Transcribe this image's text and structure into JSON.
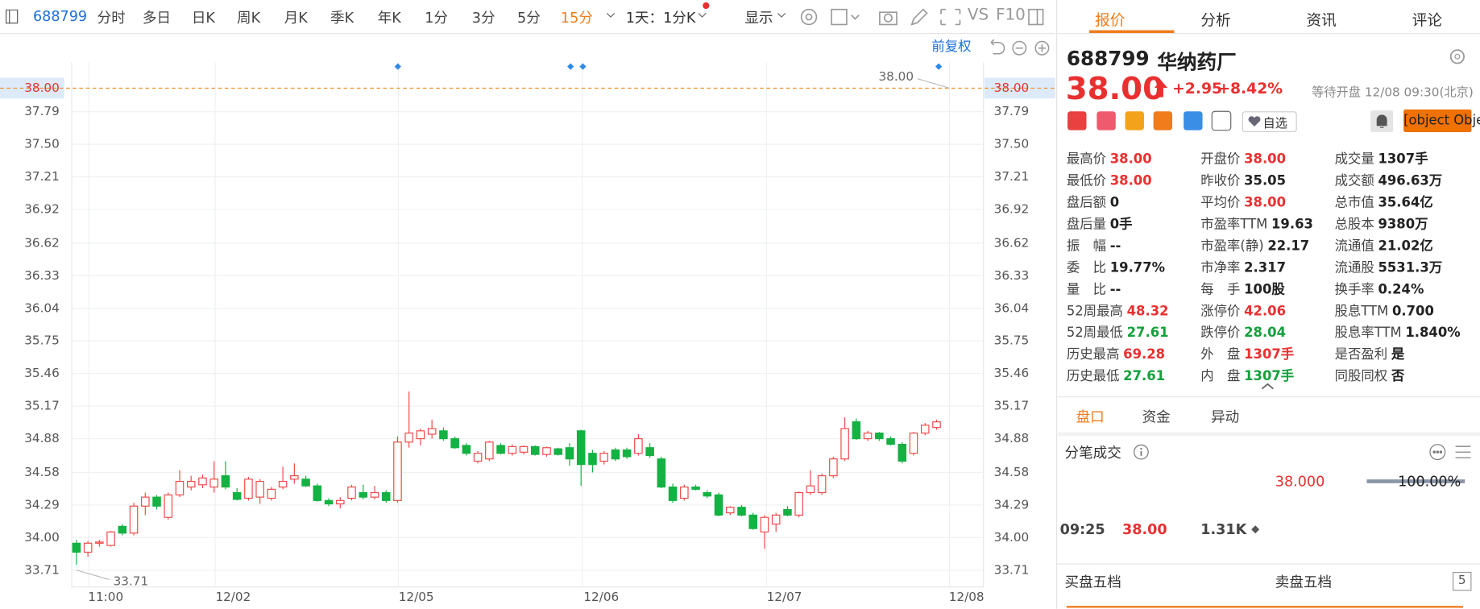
{
  "toolbar": {
    "code": "688799",
    "periods": [
      "分时",
      "多日",
      "日K",
      "周K",
      "月K",
      "季K",
      "年K",
      "1分",
      "3分",
      "5分",
      "15分"
    ],
    "interval": "1天：1分K",
    "display": "显示",
    "vs": "VS",
    "f10": "F10"
  },
  "chart": {
    "type": "candlestick",
    "adjust": "前复权",
    "ylim": [
      33.56,
      38.23
    ],
    "yticks": [
      {
        "value": 37.79,
        "label": "37.79"
      },
      {
        "value": 37.5,
        "label": "37.50"
      },
      {
        "value": 37.21,
        "label": "37.21"
      },
      {
        "value": 36.92,
        "label": "36.92"
      },
      {
        "value": 36.62,
        "label": "36.62"
      },
      {
        "value": 36.33,
        "label": "36.33"
      },
      {
        "value": 36.04,
        "label": "36.04"
      },
      {
        "value": 35.75,
        "label": "35.75"
      },
      {
        "value": 35.46,
        "label": "35.46"
      },
      {
        "value": 35.17,
        "label": "35.17"
      },
      {
        "value": 34.88,
        "label": "34.88"
      },
      {
        "value": 34.58,
        "label": "34.58"
      },
      {
        "value": 34.29,
        "label": "34.29"
      },
      {
        "value": 34,
        "label": "34.00"
      },
      {
        "value": 33.71,
        "label": "33.71"
      }
    ],
    "current": {
      "value": 38,
      "label": "38.00"
    },
    "high_note": {
      "value": 38,
      "label": "38.00"
    },
    "low_note": {
      "value": 33.71,
      "label": "33.71"
    },
    "xticks": [
      "11:00",
      "12/02",
      "12/05",
      "12/06",
      "12/07",
      "12/08"
    ],
    "up_color": "#f04848",
    "down_color": "#14b143",
    "candles": [
      [
        33.95,
        33.98,
        33.76,
        33.87
      ],
      [
        33.87,
        33.97,
        33.83,
        33.95
      ],
      [
        33.95,
        33.98,
        33.92,
        33.96
      ],
      [
        33.93,
        34.06,
        33.92,
        34.05
      ],
      [
        34.1,
        34.12,
        34.02,
        34.04
      ],
      [
        34.04,
        34.31,
        34.02,
        34.28
      ],
      [
        34.28,
        34.4,
        34.2,
        34.36
      ],
      [
        34.36,
        34.38,
        34.25,
        34.28
      ],
      [
        34.18,
        34.4,
        34.16,
        34.38
      ],
      [
        34.38,
        34.6,
        34.36,
        34.5
      ],
      [
        34.45,
        34.55,
        34.42,
        34.5
      ],
      [
        34.47,
        34.56,
        34.44,
        34.53
      ],
      [
        34.45,
        34.68,
        34.4,
        34.52
      ],
      [
        34.55,
        34.68,
        34.43,
        34.45
      ],
      [
        34.4,
        34.44,
        34.33,
        34.34
      ],
      [
        34.35,
        34.54,
        34.33,
        34.52
      ],
      [
        34.36,
        34.52,
        34.3,
        34.5
      ],
      [
        34.35,
        34.45,
        34.33,
        34.43
      ],
      [
        34.45,
        34.63,
        34.43,
        34.5
      ],
      [
        34.52,
        34.66,
        34.48,
        34.55
      ],
      [
        34.52,
        34.55,
        34.45,
        34.46
      ],
      [
        34.46,
        34.48,
        34.32,
        34.33
      ],
      [
        34.33,
        34.35,
        34.28,
        34.3
      ],
      [
        34.3,
        34.36,
        34.26,
        34.33
      ],
      [
        34.35,
        34.47,
        34.33,
        34.45
      ],
      [
        34.4,
        34.47,
        34.34,
        34.36
      ],
      [
        34.36,
        34.46,
        34.34,
        34.4
      ],
      [
        34.4,
        34.42,
        34.31,
        34.33
      ],
      [
        34.33,
        34.9,
        34.31,
        34.85
      ],
      [
        34.85,
        35.3,
        34.8,
        34.93
      ],
      [
        34.88,
        34.97,
        34.82,
        34.95
      ],
      [
        34.92,
        35.05,
        34.88,
        34.97
      ],
      [
        34.95,
        34.98,
        34.86,
        34.88
      ],
      [
        34.88,
        34.9,
        34.79,
        34.8
      ],
      [
        34.82,
        34.84,
        34.73,
        34.75
      ],
      [
        34.68,
        34.77,
        34.66,
        34.75
      ],
      [
        34.7,
        34.86,
        34.68,
        34.85
      ],
      [
        34.82,
        34.84,
        34.74,
        34.75
      ],
      [
        34.75,
        34.83,
        34.73,
        34.81
      ],
      [
        34.76,
        34.82,
        34.74,
        34.81
      ],
      [
        34.81,
        34.82,
        34.73,
        34.74
      ],
      [
        34.74,
        34.81,
        34.72,
        34.8
      ],
      [
        34.79,
        34.8,
        34.73,
        34.74
      ],
      [
        34.8,
        34.84,
        34.64,
        34.7
      ],
      [
        34.95,
        34.96,
        34.46,
        34.65
      ],
      [
        34.75,
        34.78,
        34.58,
        34.65
      ],
      [
        34.68,
        34.77,
        34.65,
        34.75
      ],
      [
        34.78,
        34.8,
        34.68,
        34.7
      ],
      [
        34.78,
        34.8,
        34.7,
        34.72
      ],
      [
        34.75,
        34.92,
        34.73,
        34.88
      ],
      [
        34.8,
        34.84,
        34.71,
        34.73
      ],
      [
        34.7,
        34.72,
        34.44,
        34.45
      ],
      [
        34.45,
        34.48,
        34.31,
        34.33
      ],
      [
        34.35,
        34.47,
        34.33,
        34.45
      ],
      [
        34.45,
        34.47,
        34.42,
        34.43
      ],
      [
        34.4,
        34.42,
        34.35,
        34.37
      ],
      [
        34.38,
        34.4,
        34.19,
        34.2
      ],
      [
        34.22,
        34.28,
        34.2,
        34.27
      ],
      [
        34.27,
        34.29,
        34.19,
        34.2
      ],
      [
        34.2,
        34.22,
        34.07,
        34.08
      ],
      [
        34.05,
        34.2,
        33.9,
        34.18
      ],
      [
        34.12,
        34.22,
        34.05,
        34.2
      ],
      [
        34.25,
        34.28,
        34.19,
        34.2
      ],
      [
        34.2,
        34.41,
        34.18,
        34.4
      ],
      [
        34.4,
        34.6,
        34.38,
        34.46
      ],
      [
        34.4,
        34.57,
        34.38,
        34.55
      ],
      [
        34.55,
        34.72,
        34.53,
        34.7
      ],
      [
        34.7,
        35.07,
        34.68,
        34.97
      ],
      [
        35.03,
        35.06,
        34.87,
        34.88
      ],
      [
        34.88,
        34.95,
        34.86,
        34.93
      ],
      [
        34.93,
        34.94,
        34.86,
        34.88
      ],
      [
        34.88,
        34.9,
        34.82,
        34.83
      ],
      [
        34.83,
        34.85,
        34.66,
        34.68
      ],
      [
        34.75,
        34.94,
        34.73,
        34.93
      ],
      [
        34.93,
        35.02,
        34.91,
        35
      ],
      [
        34.98,
        35.05,
        34.96,
        35.03
      ]
    ]
  },
  "panel": {
    "tabs": [
      "报价",
      "分析",
      "资讯",
      "评论"
    ],
    "code": "688799",
    "name": "华纳药厂",
    "price": "38.00",
    "change": "+2.95",
    "change_pct": "+8.42%",
    "status": "等待开盘 12/08 09:30(北京)",
    "watch": "自选",
    "trade": {
      "time": "09:25",
      "price": "38.00",
      "volume": "1.31K"
    },
    "stats": [
      [
        {
          "label": "最高价",
          "value": "38.00",
          "color": "#e93030"
        },
        {
          "label": "最低价",
          "value": "38.00",
          "color": "#e93030"
        },
        {
          "label": "盘后额",
          "value": "0"
        },
        {
          "label": "盘后量",
          "value": "0手"
        },
        {
          "label": "振　幅",
          "value": "--"
        },
        {
          "label": "委　比",
          "value": "19.77%"
        },
        {
          "label": "量　比",
          "value": "--"
        },
        {
          "label": "52周最高",
          "value": "48.32",
          "color": "#e93030"
        },
        {
          "label": "52周最低",
          "value": "27.61",
          "color": "#14a03c"
        },
        {
          "label": "历史最高",
          "value": "69.28",
          "color": "#e93030"
        },
        {
          "label": "历史最低",
          "value": "27.61",
          "color": "#14a03c"
        }
      ],
      [
        {
          "label": "开盘价",
          "value": "38.00",
          "color": "#e93030"
        },
        {
          "label": "昨收价",
          "value": "35.05"
        },
        {
          "label": "平均价",
          "value": "38.00",
          "color": "#e93030"
        },
        {
          "label": "市盈率TTM",
          "value": "19.63"
        },
        {
          "label": "市盈率(静)",
          "value": "22.17"
        },
        {
          "label": "市净率",
          "value": "2.317"
        },
        {
          "label": "每　手",
          "value": "100股"
        },
        {
          "label": "涨停价",
          "value": "42.06",
          "color": "#e93030"
        },
        {
          "label": "跌停价",
          "value": "28.04",
          "color": "#14a03c"
        },
        {
          "label": "外　盘",
          "value": "1307手",
          "color": "#e93030"
        },
        {
          "label": "内　盘",
          "value": "1307手",
          "color": "#14a03c"
        }
      ],
      [
        {
          "label": "成交量",
          "value": "1307手"
        },
        {
          "label": "成交额",
          "value": "496.63万"
        },
        {
          "label": "总市值",
          "value": "35.64亿"
        },
        {
          "label": "总股本",
          "value": "9380万"
        },
        {
          "label": "流通值",
          "value": "21.02亿"
        },
        {
          "label": "流通股",
          "value": "5531.3万"
        },
        {
          "label": "换手率",
          "value": "0.24%"
        },
        {
          "label": "股息TTM",
          "value": "0.700"
        },
        {
          "label": "股息率TTM",
          "value": "1.840%"
        },
        {
          "label": "是否盈利",
          "value": "是"
        },
        {
          "label": "同股同权",
          "value": "否"
        }
      ]
    ],
    "sub_tabs": [
      "盘口",
      "资金",
      "异动"
    ],
    "ticks_title": "分笔成交",
    "tick_price": "38.000",
    "tick_ratio": "100.00%",
    "bid_title": "买盘五档",
    "ask_title": "卖盘五档",
    "depth": "5"
  }
}
